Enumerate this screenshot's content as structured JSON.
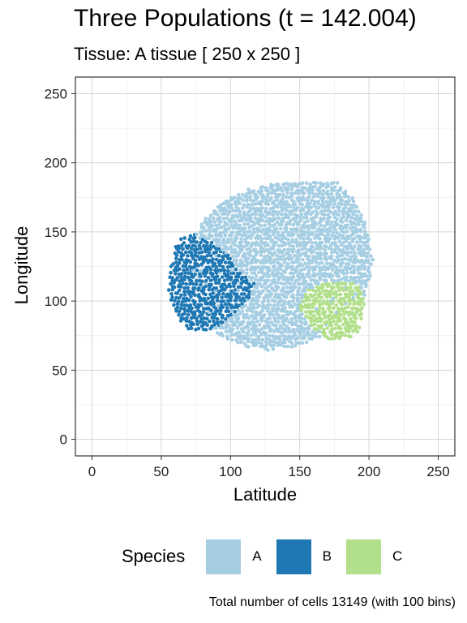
{
  "title": "Three Populations (t = 142.004)",
  "subtitle": "Tissue: A tissue [ 250 x 250 ]",
  "caption": "Total number of cells 13149 (with 100 bins)",
  "legend": {
    "title": "Species",
    "items": [
      {
        "label": "A",
        "color": "#a6cee3"
      },
      {
        "label": "B",
        "color": "#1f78b4"
      },
      {
        "label": "C",
        "color": "#b2df8a"
      }
    ]
  },
  "chart_data": {
    "type": "scatter",
    "title": "Three Populations (t = 142.004)",
    "subtitle": "Tissue: A tissue [ 250 x 250 ]",
    "xlabel": "Latitude",
    "ylabel": "Longitude",
    "xlim": [
      -12,
      262
    ],
    "ylim": [
      -12,
      262
    ],
    "xticks": [
      0,
      50,
      100,
      150,
      200,
      250
    ],
    "yticks": [
      0,
      50,
      100,
      150,
      200,
      250
    ],
    "grid": true,
    "legend_position": "bottom",
    "bins": 100,
    "total_cells": 13149,
    "series": [
      {
        "name": "A",
        "color": "#a6cee3",
        "region": {
          "shape": "blob",
          "center": [
            130,
            125
          ],
          "outline": [
            [
              70,
              118
            ],
            [
              72,
              145
            ],
            [
              82,
              160
            ],
            [
              95,
              172
            ],
            [
              110,
              180
            ],
            [
              125,
              185
            ],
            [
              145,
              186
            ],
            [
              160,
              186
            ],
            [
              175,
              186
            ],
            [
              180,
              185
            ],
            [
              190,
              172
            ],
            [
              197,
              160
            ],
            [
              200,
              148
            ],
            [
              203,
              130
            ],
            [
              200,
              112
            ],
            [
              196,
              100
            ],
            [
              185,
              85
            ],
            [
              170,
              75
            ],
            [
              150,
              68
            ],
            [
              130,
              64
            ],
            [
              110,
              67
            ],
            [
              95,
              73
            ],
            [
              85,
              82
            ],
            [
              75,
              98
            ]
          ]
        }
      },
      {
        "name": "B",
        "color": "#1f78b4",
        "region": {
          "shape": "blob",
          "center": [
            82,
            112
          ],
          "outline": [
            [
              55,
              112
            ],
            [
              57,
              125
            ],
            [
              60,
              140
            ],
            [
              65,
              147
            ],
            [
              75,
              148
            ],
            [
              88,
              142
            ],
            [
              100,
              132
            ],
            [
              108,
              120
            ],
            [
              118,
              112
            ],
            [
              112,
              100
            ],
            [
              102,
              90
            ],
            [
              92,
              82
            ],
            [
              80,
              78
            ],
            [
              68,
              80
            ],
            [
              60,
              90
            ],
            [
              56,
              100
            ]
          ]
        }
      },
      {
        "name": "C",
        "color": "#b2df8a",
        "region": {
          "shape": "blob",
          "center": [
            177,
            97
          ],
          "outline": [
            [
              150,
              98
            ],
            [
              155,
              108
            ],
            [
              165,
              112
            ],
            [
              178,
              114
            ],
            [
              192,
              113
            ],
            [
              197,
              106
            ],
            [
              196,
              92
            ],
            [
              192,
              76
            ],
            [
              180,
              72
            ],
            [
              168,
              72
            ],
            [
              160,
              80
            ],
            [
              152,
              90
            ]
          ]
        }
      }
    ]
  }
}
